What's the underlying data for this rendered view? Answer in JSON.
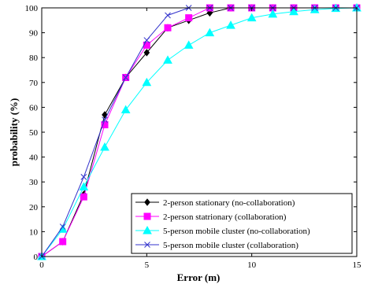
{
  "chart_data": {
    "type": "line",
    "title": "",
    "xlabel": "Error (m)",
    "ylabel": "probability (%)",
    "xlim": [
      0,
      15
    ],
    "ylim": [
      0,
      100
    ],
    "xticks": [
      0,
      5,
      10,
      15
    ],
    "yticks": [
      0,
      10,
      20,
      30,
      40,
      50,
      60,
      70,
      80,
      90,
      100
    ],
    "grid": false,
    "legend_position": "bottom-right",
    "series": [
      {
        "name": "2-person stationary (no-collaboration)",
        "color": "#000000",
        "marker": "diamond",
        "x": [
          0,
          1,
          2,
          3,
          4,
          5,
          6,
          7,
          8,
          9,
          10,
          11,
          12,
          13,
          14,
          15
        ],
        "y": [
          0,
          6,
          25,
          57,
          72,
          82,
          92,
          95,
          98,
          100,
          100,
          100,
          100,
          100,
          100,
          100
        ]
      },
      {
        "name": "2-person statrionary (collaboration)",
        "color": "#ff00ff",
        "marker": "square",
        "x": [
          0,
          1,
          2,
          3,
          4,
          5,
          6,
          7,
          8,
          9,
          10,
          11,
          12,
          13,
          14,
          15
        ],
        "y": [
          0,
          6,
          24,
          53,
          72,
          85,
          92,
          96,
          100,
          100,
          100,
          100,
          100,
          100,
          100,
          100
        ]
      },
      {
        "name": "5-person mobile cluster (no-collaboration)",
        "color": "#00ffff",
        "marker": "triangle",
        "x": [
          0,
          1,
          2,
          3,
          4,
          5,
          6,
          7,
          8,
          9,
          10,
          11,
          12,
          13,
          14,
          15
        ],
        "y": [
          0,
          11,
          28,
          44,
          59,
          70,
          79,
          85,
          90,
          93,
          96,
          97.5,
          98.5,
          99.3,
          99.8,
          100
        ]
      },
      {
        "name": "5-person mobile cluster (collaboration)",
        "color": "#3333cc",
        "marker": "x",
        "x": [
          0,
          1,
          2,
          3,
          4,
          5,
          6,
          7,
          8,
          9,
          10,
          11,
          12,
          13,
          14,
          15
        ],
        "y": [
          0,
          12,
          32,
          55,
          72,
          87,
          97,
          100,
          100,
          100,
          100,
          100,
          100,
          100,
          100,
          100
        ]
      }
    ]
  }
}
